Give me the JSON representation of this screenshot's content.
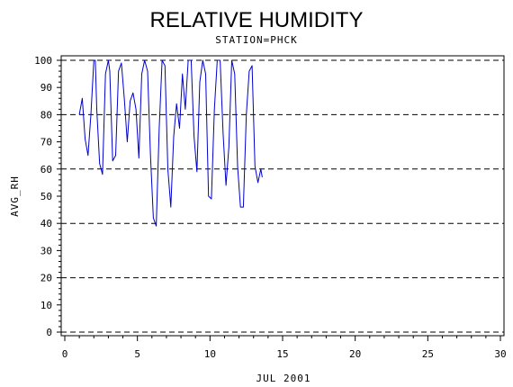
{
  "chart_data": {
    "type": "line",
    "title": "RELATIVE HUMIDITY",
    "subtitle": "STATION=PHCK",
    "xlabel": "JUL 2001",
    "ylabel": "AVG_RH",
    "xlim": [
      0,
      30
    ],
    "ylim": [
      0,
      100
    ],
    "x_ticks": [
      0,
      5,
      10,
      15,
      20,
      25,
      30
    ],
    "y_ticks": [
      0,
      10,
      20,
      30,
      40,
      50,
      60,
      70,
      80,
      90,
      100
    ],
    "gridlines_y": [
      0,
      20,
      40,
      60,
      80,
      100
    ],
    "grid_style": "dashed horizontal",
    "series_color": "#0000cc",
    "series": [
      {
        "x": [
          1.0,
          1.2,
          1.4,
          1.6,
          1.8,
          2.0,
          2.1,
          2.2,
          2.4,
          2.6,
          2.8,
          3.0,
          3.1,
          3.3,
          3.5,
          3.7,
          3.9,
          4.1,
          4.3,
          4.5,
          4.7,
          4.9,
          5.1,
          5.3,
          5.5,
          5.7,
          5.9,
          6.1,
          6.3,
          6.5,
          6.7,
          6.9,
          7.1,
          7.3,
          7.5,
          7.7,
          7.9,
          8.1,
          8.3,
          8.5,
          8.7,
          8.9,
          9.1,
          9.3,
          9.5,
          9.7,
          9.9,
          10.1,
          10.3,
          10.5,
          10.7,
          10.9,
          11.1,
          11.3,
          11.5,
          11.7,
          11.9,
          12.1,
          12.3,
          12.5,
          12.7,
          12.9,
          13.1,
          13.3,
          13.5,
          13.6
        ],
        "values": [
          80,
          86,
          71,
          65,
          80,
          100,
          100,
          82,
          62,
          58,
          95,
          100,
          96,
          63,
          65,
          96,
          99,
          86,
          70,
          85,
          88,
          82,
          64,
          95,
          100,
          96,
          65,
          42,
          39,
          75,
          100,
          98,
          60,
          46,
          72,
          84,
          75,
          95,
          82,
          100,
          100,
          72,
          59,
          92,
          100,
          95,
          50,
          49,
          82,
          100,
          100,
          73,
          54,
          68,
          100,
          95,
          61,
          46,
          46,
          80,
          96,
          98,
          61,
          55,
          60,
          57
        ]
      }
    ]
  }
}
